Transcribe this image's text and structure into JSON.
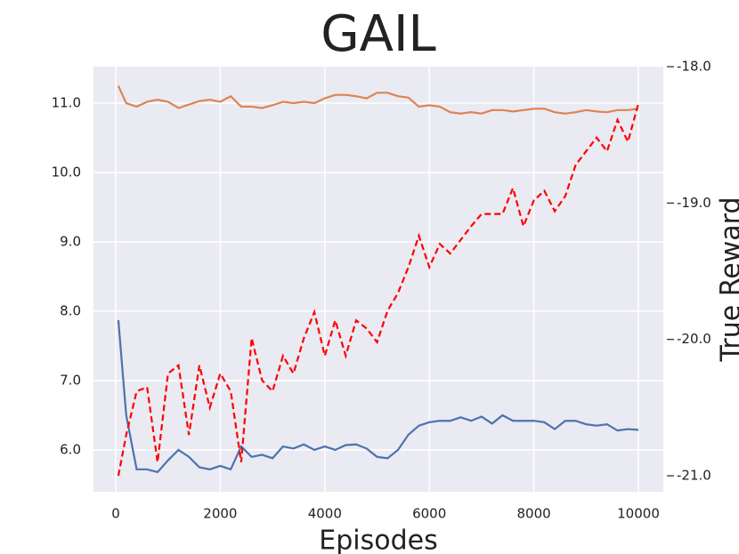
{
  "chart_data": {
    "type": "line",
    "title": "GAIL",
    "x_label": "Episodes",
    "y2_label": "True Reward",
    "x": [
      50,
      200,
      400,
      600,
      800,
      1000,
      1200,
      1400,
      1600,
      1800,
      2000,
      2200,
      2400,
      2600,
      2800,
      3000,
      3200,
      3400,
      3600,
      3800,
      4000,
      4200,
      4400,
      4600,
      4800,
      5000,
      5200,
      5400,
      5600,
      5800,
      6000,
      6200,
      6400,
      6600,
      6800,
      7000,
      7200,
      7400,
      7600,
      7800,
      8000,
      8200,
      8400,
      8600,
      8800,
      9000,
      9200,
      9400,
      9600,
      9800,
      10000
    ],
    "series": [
      {
        "color": "#4c72b0",
        "values": [
          7.87,
          6.5,
          5.72,
          5.72,
          5.68,
          5.85,
          6.0,
          5.9,
          5.75,
          5.72,
          5.77,
          5.72,
          6.05,
          5.9,
          5.93,
          5.88,
          6.05,
          6.02,
          6.08,
          6.0,
          6.05,
          6.0,
          6.07,
          6.08,
          6.02,
          5.9,
          5.88,
          6.0,
          6.22,
          6.35,
          6.4,
          6.42,
          6.42,
          6.47,
          6.42,
          6.48,
          6.38,
          6.5,
          6.42,
          6.42,
          6.42,
          6.4,
          6.3,
          6.42,
          6.42,
          6.37,
          6.35,
          6.37,
          6.28,
          6.3,
          6.29
        ]
      },
      {
        "color": "#dd8452",
        "values": [
          11.25,
          11.0,
          10.95,
          11.02,
          11.05,
          11.02,
          10.93,
          10.98,
          11.03,
          11.05,
          11.02,
          11.1,
          10.95,
          10.95,
          10.93,
          10.97,
          11.02,
          11.0,
          11.02,
          11.0,
          11.07,
          11.12,
          11.12,
          11.1,
          11.07,
          11.15,
          11.15,
          11.1,
          11.08,
          10.95,
          10.97,
          10.95,
          10.87,
          10.85,
          10.87,
          10.85,
          10.9,
          10.9,
          10.88,
          10.9,
          10.92,
          10.92,
          10.87,
          10.85,
          10.87,
          10.9,
          10.88,
          10.87,
          10.9,
          10.9,
          10.92
        ]
      },
      {
        "color": "#ff0000",
        "dashed": true,
        "axis": "y2",
        "values": [
          -21.0,
          -20.7,
          -20.38,
          -20.35,
          -20.9,
          -20.25,
          -20.19,
          -20.7,
          -20.19,
          -20.5,
          -20.25,
          -20.38,
          -20.9,
          -19.99,
          -20.3,
          -20.38,
          -20.12,
          -20.25,
          -19.99,
          -19.8,
          -20.12,
          -19.86,
          -20.12,
          -19.86,
          -19.92,
          -20.02,
          -19.79,
          -19.66,
          -19.47,
          -19.24,
          -19.47,
          -19.3,
          -19.37,
          -19.27,
          -19.17,
          -19.08,
          -19.08,
          -19.08,
          -18.89,
          -19.17,
          -18.98,
          -18.91,
          -19.06,
          -18.95,
          -18.72,
          -18.62,
          -18.52,
          -18.62,
          -18.39,
          -18.55,
          -18.27
        ]
      }
    ],
    "xlim": [
      -426,
      10477
    ],
    "xticks": [
      0,
      2000,
      4000,
      6000,
      8000,
      10000
    ],
    "ylim": [
      5.397,
      11.526
    ],
    "yticks": [
      {
        "value": 6,
        "label": "6.0"
      },
      {
        "value": 7,
        "label": "7.0"
      },
      {
        "value": 8,
        "label": "8.0"
      },
      {
        "value": 9,
        "label": "9.0"
      },
      {
        "value": 10,
        "label": "10.0"
      },
      {
        "value": 11,
        "label": "11.0"
      }
    ],
    "y2lim": [
      -21.117,
      -18.0
    ],
    "y2ticks": [
      {
        "value": -21,
        "label": "-21.0"
      },
      {
        "value": -20,
        "label": "-20.0"
      },
      {
        "value": -19,
        "label": "-19.0"
      },
      {
        "value": -18,
        "label": "-18.0"
      }
    ],
    "grid": true
  }
}
